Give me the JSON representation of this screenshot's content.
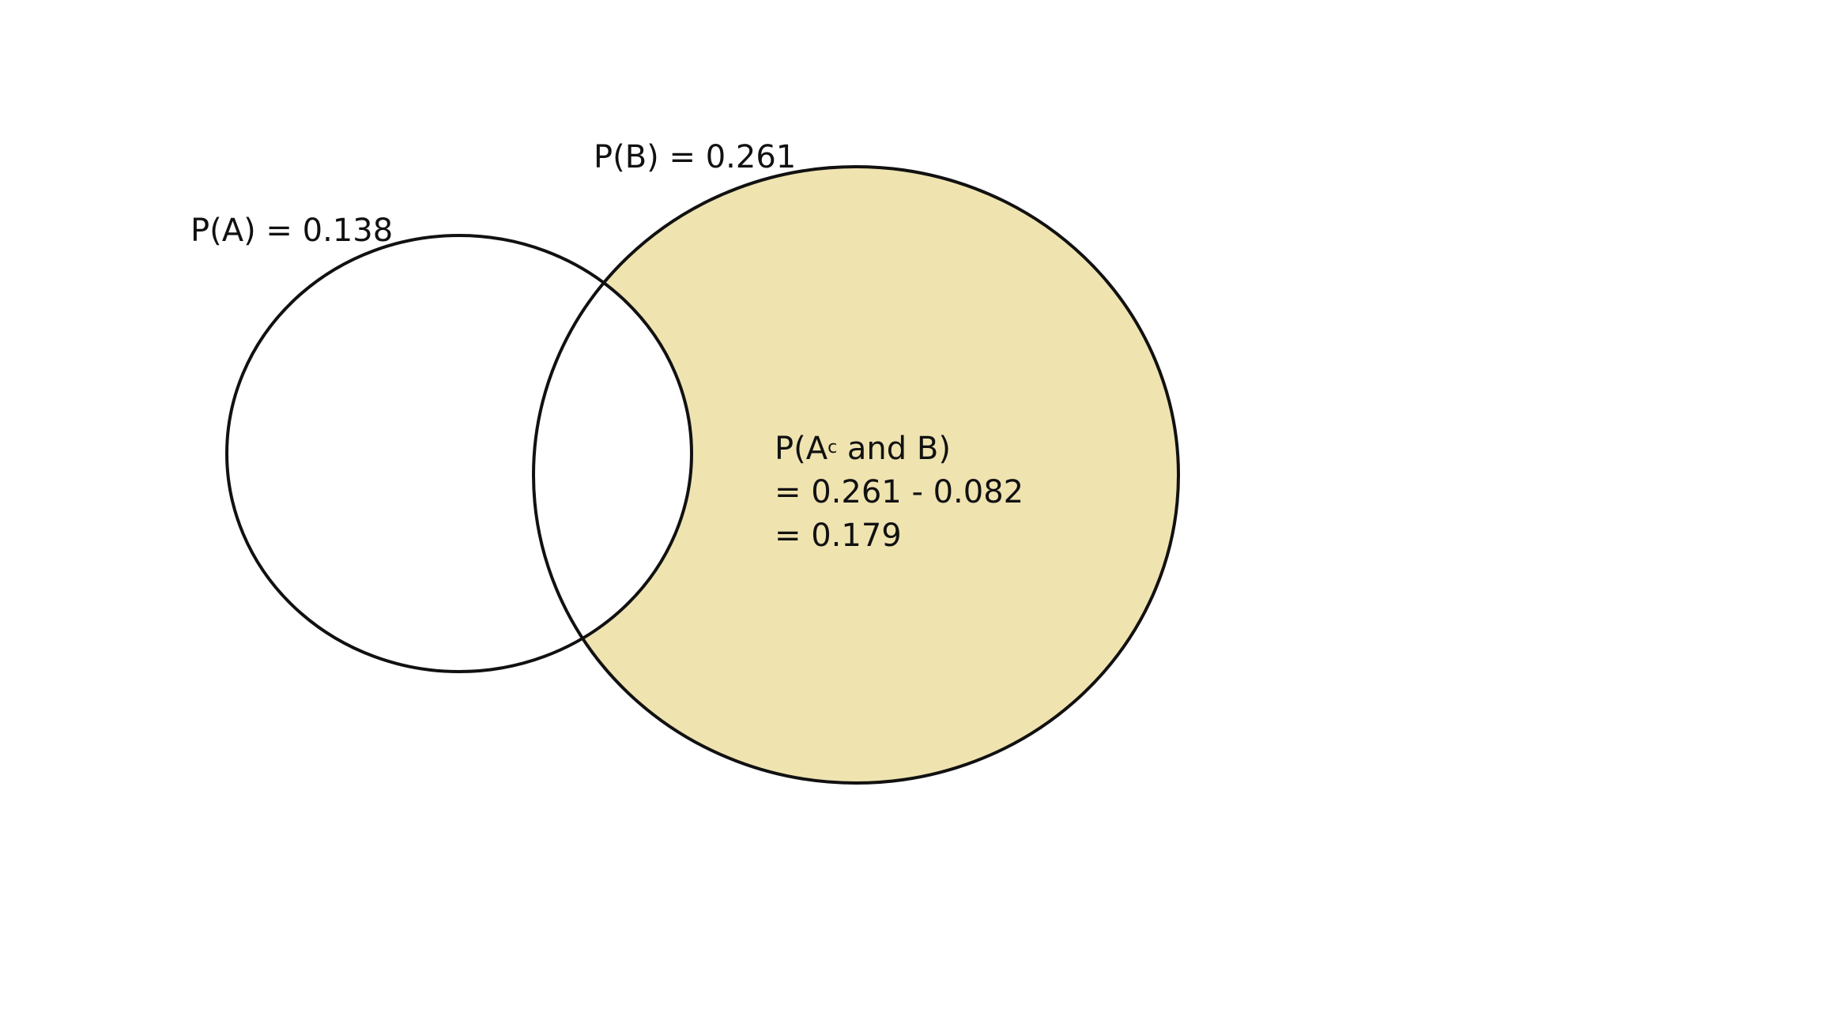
{
  "colors": {
    "background": "#ffffff",
    "highlight_fill": "#efe3b0",
    "outline": "#111111",
    "text": "#111111"
  },
  "sets": {
    "a": {
      "label": "P(A) = 0.138"
    },
    "b": {
      "label": "P(B) = 0.261"
    }
  },
  "highlighted_region": {
    "name": "A complement and B",
    "title_prefix": "P(A",
    "title_sup": "c",
    "title_suffix": " and B)",
    "line2": "= 0.261 - 0.082",
    "line3": "= 0.179"
  }
}
